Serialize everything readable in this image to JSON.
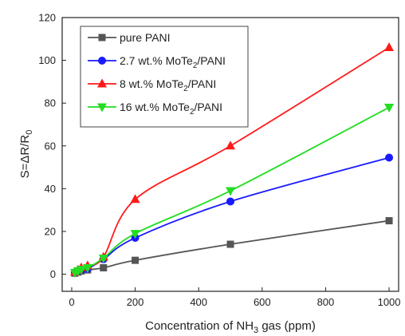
{
  "chart_data": {
    "type": "line",
    "xlabel_parts": [
      "Concentration of NH",
      "3",
      " gas (ppm)"
    ],
    "ylabel_parts": [
      "S=",
      "ΔR/R",
      "0"
    ],
    "xlim": [
      -30,
      1030
    ],
    "ylim": [
      -8,
      120
    ],
    "xticks": [
      0,
      200,
      400,
      600,
      800,
      1000
    ],
    "yticks": [
      0,
      20,
      40,
      60,
      80,
      100,
      120
    ],
    "legend_position": "top-left",
    "x": [
      10,
      20,
      30,
      50,
      100,
      200,
      500,
      1000
    ],
    "series": [
      {
        "name_parts": [
          "pure PANI",
          "",
          ""
        ],
        "color": "#555555",
        "marker": "square",
        "values": [
          0.5,
          1.0,
          1.5,
          2.0,
          3.0,
          6.5,
          14.0,
          25.0
        ]
      },
      {
        "name_parts": [
          "2.7 wt.% MoTe",
          "2",
          "/PANI"
        ],
        "color": "#1a1aff",
        "marker": "circle",
        "values": [
          0.8,
          1.5,
          2.0,
          2.5,
          7.0,
          17.0,
          34.0,
          54.5
        ]
      },
      {
        "name_parts": [
          "8 wt.% MoTe",
          "2",
          "/PANI"
        ],
        "color": "#ff1a1a",
        "marker": "triangle-up",
        "values": [
          1.0,
          2.0,
          3.0,
          4.0,
          8.0,
          35.0,
          60.0,
          106.0
        ]
      },
      {
        "name_parts": [
          "16 wt.% MoTe",
          "2",
          "/PANI"
        ],
        "color": "#22dd22",
        "marker": "triangle-down",
        "values": [
          0.7,
          1.5,
          2.2,
          3.0,
          7.5,
          19.0,
          39.0,
          78.0
        ]
      }
    ]
  }
}
